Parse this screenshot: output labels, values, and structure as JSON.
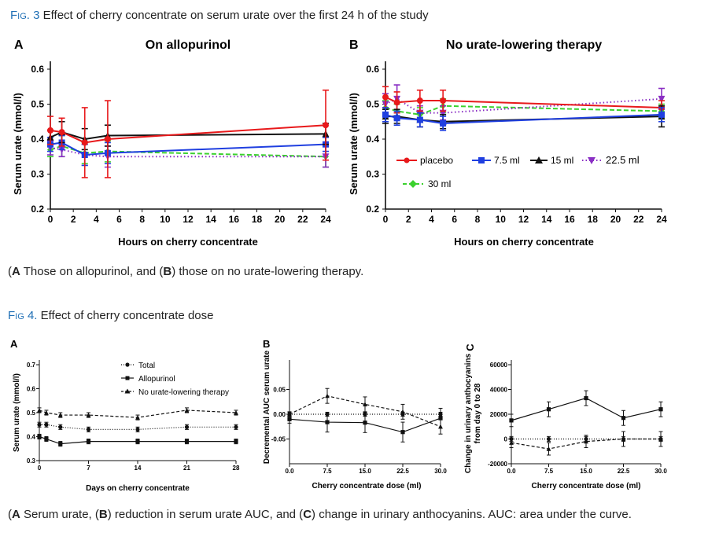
{
  "fig3": {
    "title_prefix": "Fig. 3",
    "title_text": "Effect of cherry concentrate on serum urate over the first 24 h of the study",
    "caption_a": "A",
    "caption_text_1": " Those on allopurinol, and (",
    "caption_b": "B",
    "caption_text_2": ") those on no urate-lowering therapy.",
    "legend": {
      "placebo": "placebo",
      "ml7_5": "7.5 ml",
      "ml15": "15 ml",
      "ml22_5": "22.5 ml",
      "ml30": "30 ml"
    }
  },
  "fig4": {
    "title_prefix": "Fig 4.",
    "title_text": "Effect of cherry concentrate dose",
    "caption_a": "A",
    "caption_text_1": " Serum urate, (",
    "caption_b": "B",
    "caption_text_2": ") reduction in serum urate AUC, and (",
    "caption_c": "C",
    "caption_text_3": ") change in urinary anthocyanins. AUC: area under the curve.",
    "legend": {
      "total": "Total",
      "allopurinol": "Allopurinol",
      "no_ult": "No urate-lowering therapy"
    }
  },
  "colors": {
    "placebo": "#e8191b",
    "ml7_5": "#1f3fe0",
    "ml15": "#111111",
    "ml22_5": "#8a2fc4",
    "ml30": "#3bd12e",
    "link": "#1f6fb5"
  },
  "chart_data": [
    {
      "id": "fig3A",
      "panel_label": "A",
      "type": "line",
      "title": "On allopurinol",
      "xlabel": "Hours on cherry concentrate",
      "ylabel": "Serum urate (mmol/l)",
      "xlim": [
        0,
        24
      ],
      "ylim": [
        0.2,
        0.6
      ],
      "xticks": [
        0,
        2,
        4,
        6,
        8,
        10,
        12,
        14,
        16,
        18,
        20,
        22,
        24
      ],
      "xtick_labels": [
        "0",
        "2",
        "4",
        "6",
        "8",
        "10",
        "12",
        "14",
        "16",
        "18",
        "20",
        "22",
        "24"
      ],
      "yticks": [
        0.2,
        0.3,
        0.4,
        0.5,
        0.6
      ],
      "ytick_labels": [
        "0.2",
        "0.3",
        "0.4",
        "0.5",
        "0.6"
      ],
      "series": [
        {
          "key": "ml30",
          "name": "30 ml",
          "x": [
            0,
            1,
            3,
            5,
            24
          ],
          "y": [
            0.37,
            0.38,
            0.36,
            0.365,
            0.35
          ],
          "err": [
            0.02,
            0.03,
            0.03,
            0.03,
            0.03
          ]
        },
        {
          "key": "ml22_5",
          "name": "22.5 ml",
          "x": [
            0,
            1,
            3,
            5,
            24
          ],
          "y": [
            0.375,
            0.37,
            0.355,
            0.35,
            0.35
          ],
          "err": [
            0.02,
            0.02,
            0.03,
            0.03,
            0.03
          ]
        },
        {
          "key": "ml7_5",
          "name": "7.5 ml",
          "x": [
            0,
            1,
            3,
            5,
            24
          ],
          "y": [
            0.385,
            0.39,
            0.355,
            0.36,
            0.385
          ],
          "err": [
            0.02,
            0.02,
            0.03,
            0.03,
            0.02
          ]
        },
        {
          "key": "ml15",
          "name": "15 ml",
          "x": [
            0,
            1,
            3,
            5,
            24
          ],
          "y": [
            0.405,
            0.42,
            0.4,
            0.41,
            0.415
          ],
          "err": [
            0.02,
            0.03,
            0.03,
            0.03,
            0.03
          ]
        },
        {
          "key": "placebo",
          "name": "placebo",
          "x": [
            0,
            1,
            3,
            5,
            24
          ],
          "y": [
            0.425,
            0.42,
            0.39,
            0.4,
            0.44
          ],
          "err": [
            0.04,
            0.04,
            0.1,
            0.11,
            0.1
          ]
        }
      ]
    },
    {
      "id": "fig3B",
      "panel_label": "B",
      "type": "line",
      "title": "No urate-lowering therapy",
      "xlabel": "Hours on cherry concentrate",
      "ylabel": "Serum urate (mmol/l)",
      "xlim": [
        0,
        24
      ],
      "ylim": [
        0.2,
        0.6
      ],
      "xticks": [
        0,
        2,
        4,
        6,
        8,
        10,
        12,
        14,
        16,
        18,
        20,
        22,
        24
      ],
      "xtick_labels": [
        "0",
        "2",
        "4",
        "6",
        "8",
        "10",
        "12",
        "14",
        "16",
        "18",
        "20",
        "22",
        "24"
      ],
      "yticks": [
        0.2,
        0.3,
        0.4,
        0.5,
        0.6
      ],
      "ytick_labels": [
        "0.2",
        "0.3",
        "0.4",
        "0.5",
        "0.6"
      ],
      "series": [
        {
          "key": "ml30",
          "name": "30 ml",
          "x": [
            0,
            1,
            3,
            5,
            24
          ],
          "y": [
            0.49,
            0.48,
            0.47,
            0.495,
            0.48
          ],
          "err": [
            0.02,
            0.02,
            0.02,
            0.02,
            0.02
          ]
        },
        {
          "key": "ml22_5",
          "name": "22.5 ml",
          "x": [
            0,
            1,
            3,
            5,
            24
          ],
          "y": [
            0.5,
            0.515,
            0.475,
            0.475,
            0.515
          ],
          "err": [
            0.03,
            0.04,
            0.02,
            0.02,
            0.03
          ]
        },
        {
          "key": "placebo",
          "name": "placebo",
          "x": [
            0,
            1,
            3,
            5,
            24
          ],
          "y": [
            0.52,
            0.505,
            0.51,
            0.51,
            0.49
          ],
          "err": [
            0.03,
            0.03,
            0.03,
            0.03,
            0.02
          ]
        },
        {
          "key": "ml15",
          "name": "15 ml",
          "x": [
            0,
            1,
            3,
            5,
            24
          ],
          "y": [
            0.465,
            0.465,
            0.455,
            0.45,
            0.465
          ],
          "err": [
            0.02,
            0.02,
            0.02,
            0.02,
            0.03
          ]
        },
        {
          "key": "ml7_5",
          "name": "7.5 ml",
          "x": [
            0,
            1,
            3,
            5,
            24
          ],
          "y": [
            0.47,
            0.46,
            0.455,
            0.445,
            0.47
          ],
          "err": [
            0.02,
            0.02,
            0.02,
            0.02,
            0.02
          ]
        }
      ]
    },
    {
      "id": "fig4A",
      "panel_label": "A",
      "type": "line",
      "xlabel": "Days on cherry concentrate",
      "ylabel": "Serum urate (mmol/l)",
      "xlim": [
        0,
        28
      ],
      "ylim": [
        0.3,
        0.7
      ],
      "xticks": [
        0,
        7,
        14,
        21,
        28
      ],
      "xtick_labels": [
        "0",
        "7",
        "14",
        "21",
        "28"
      ],
      "yticks": [
        0.3,
        0.4,
        0.5,
        0.6,
        0.7
      ],
      "ytick_labels": [
        "0.3",
        "0.4",
        "0.5",
        "0.6",
        "0.7"
      ],
      "series": [
        {
          "key": "no_ult",
          "name": "No urate-lowering therapy",
          "style": "dashed",
          "marker": "triangle",
          "x": [
            0,
            1,
            3,
            7,
            14,
            21,
            28
          ],
          "y": [
            0.51,
            0.5,
            0.49,
            0.49,
            0.48,
            0.51,
            0.5
          ],
          "err": [
            0.01,
            0.01,
            0.01,
            0.01,
            0.01,
            0.01,
            0.01
          ]
        },
        {
          "key": "total",
          "name": "Total",
          "style": "dotted",
          "marker": "circle",
          "x": [
            0,
            1,
            3,
            7,
            14,
            21,
            28
          ],
          "y": [
            0.45,
            0.45,
            0.44,
            0.43,
            0.43,
            0.44,
            0.44
          ],
          "err": [
            0.01,
            0.01,
            0.01,
            0.01,
            0.01,
            0.01,
            0.01
          ]
        },
        {
          "key": "allopurinol",
          "name": "Allopurinol",
          "style": "solid",
          "marker": "square",
          "x": [
            0,
            1,
            3,
            7,
            14,
            21,
            28
          ],
          "y": [
            0.4,
            0.39,
            0.37,
            0.38,
            0.38,
            0.38,
            0.38
          ],
          "err": [
            0.01,
            0.01,
            0.01,
            0.01,
            0.01,
            0.01,
            0.01
          ]
        }
      ]
    },
    {
      "id": "fig4B",
      "panel_label": "B",
      "type": "line",
      "xlabel": "Cherry concentrate dose (ml)",
      "ylabel": "Decremental AUC serum urate",
      "xlim": [
        0,
        30
      ],
      "ylim": [
        -0.1,
        0.1
      ],
      "xticks": [
        0,
        7.5,
        15,
        22.5,
        30
      ],
      "xtick_labels": [
        "0.0",
        "7.5",
        "15.0",
        "22.5",
        "30.0"
      ],
      "yticks": [
        -0.05,
        0.0,
        0.05
      ],
      "ytick_labels": [
        "-0.05",
        "0.00",
        "0.05"
      ],
      "series": [
        {
          "key": "no_ult",
          "name": "No urate-lowering therapy",
          "style": "dashed",
          "marker": "triangle",
          "x": [
            0,
            7.5,
            15,
            22.5,
            30
          ],
          "y": [
            0.0,
            0.037,
            0.02,
            0.005,
            -0.025
          ],
          "err": [
            0.005,
            0.015,
            0.015,
            0.015,
            0.015
          ]
        },
        {
          "key": "total",
          "name": "Total",
          "style": "dotted",
          "marker": "circle",
          "x": [
            0,
            7.5,
            15,
            22.5,
            30
          ],
          "y": [
            0.0,
            0.0,
            0.0,
            0.0,
            0.0
          ],
          "err": [
            0.004,
            0.004,
            0.004,
            0.004,
            0.004
          ]
        },
        {
          "key": "allopurinol",
          "name": "Allopurinol",
          "style": "solid",
          "marker": "square",
          "x": [
            0,
            7.5,
            15,
            22.5,
            30
          ],
          "y": [
            -0.01,
            -0.016,
            -0.017,
            -0.036,
            -0.008
          ],
          "err": [
            0.008,
            0.02,
            0.02,
            0.02,
            0.02
          ]
        }
      ]
    },
    {
      "id": "fig4C",
      "panel_label": "C",
      "type": "line",
      "xlabel": "Cherry concentrate dose (ml)",
      "ylabel": "Change in urinary anthocyanins from day 0 to 28",
      "xlim": [
        0,
        30
      ],
      "ylim": [
        -20000,
        60000
      ],
      "xticks": [
        0,
        7.5,
        15,
        22.5,
        30
      ],
      "xtick_labels": [
        "0.0",
        "7.5",
        "15.0",
        "22.5",
        "30.0"
      ],
      "yticks": [
        -20000,
        0,
        20000,
        40000,
        60000
      ],
      "ytick_labels": [
        "-20000",
        "0",
        "20000",
        "40000",
        "60000"
      ],
      "series": [
        {
          "key": "no_ult",
          "name": "No urate-lowering therapy",
          "style": "dashed",
          "marker": "triangle",
          "x": [
            0,
            7.5,
            15,
            22.5,
            30
          ],
          "y": [
            -3000,
            -8000,
            -2000,
            0,
            0
          ],
          "err": [
            4000,
            5000,
            5000,
            6000,
            6000
          ]
        },
        {
          "key": "total",
          "name": "Total",
          "style": "dotted",
          "marker": "circle",
          "x": [
            0,
            7.5,
            15,
            22.5,
            30
          ],
          "y": [
            0,
            0,
            0,
            0,
            0
          ],
          "err": [
            2000,
            2000,
            2000,
            2000,
            2000
          ]
        },
        {
          "key": "allopurinol",
          "name": "Allopurinol",
          "style": "solid",
          "marker": "square",
          "x": [
            0,
            7.5,
            15,
            22.5,
            30
          ],
          "y": [
            15000,
            24000,
            33000,
            17000,
            24000
          ],
          "err": [
            5000,
            6000,
            6000,
            6000,
            6000
          ]
        }
      ]
    }
  ]
}
